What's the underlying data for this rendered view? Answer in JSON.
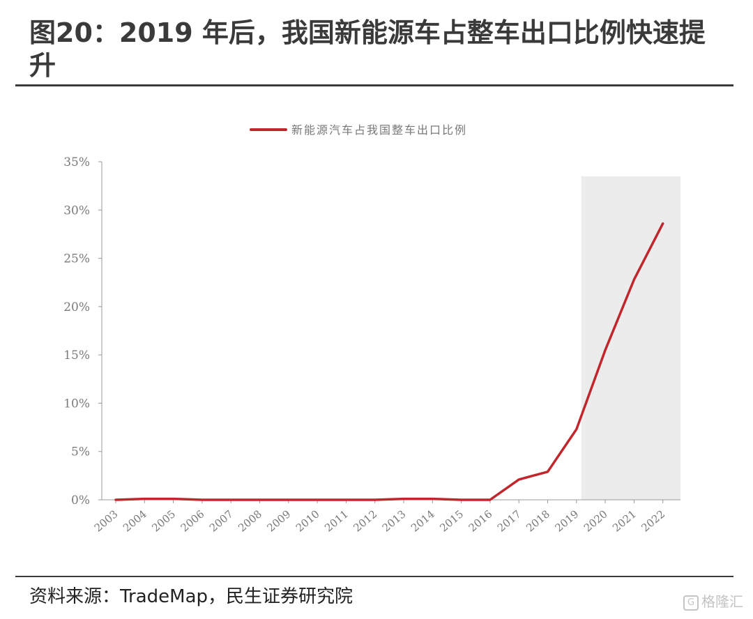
{
  "figure": {
    "title": "图20：2019 年后，我国新能源车占整车出口比例快速提升",
    "source": "资料来源：TradeMap，民生证券研究院",
    "watermark_text": "格隆汇"
  },
  "chart_data": {
    "type": "line",
    "x": [
      "2003",
      "2004",
      "2005",
      "2006",
      "2007",
      "2008",
      "2009",
      "2010",
      "2011",
      "2012",
      "2013",
      "2014",
      "2015",
      "2016",
      "2017",
      "2018",
      "2019",
      "2020",
      "2021",
      "2022"
    ],
    "series": [
      {
        "name": "新能源汽车占我国整车出口比例",
        "values": [
          0.0,
          0.1,
          0.1,
          0.0,
          0.0,
          0.0,
          0.0,
          0.0,
          0.0,
          0.0,
          0.1,
          0.1,
          0.0,
          0.0,
          2.1,
          2.9,
          7.3,
          15.5,
          22.8,
          28.6
        ],
        "color": "#c0272d"
      }
    ],
    "yticks": [
      "0%",
      "5%",
      "10%",
      "15%",
      "20%",
      "25%",
      "30%",
      "35%"
    ],
    "ylim": [
      0,
      35
    ],
    "highlight_range": [
      "2019",
      "2022"
    ],
    "highlight_color": "#ececec",
    "grid": false,
    "legend_position": "top-center"
  }
}
